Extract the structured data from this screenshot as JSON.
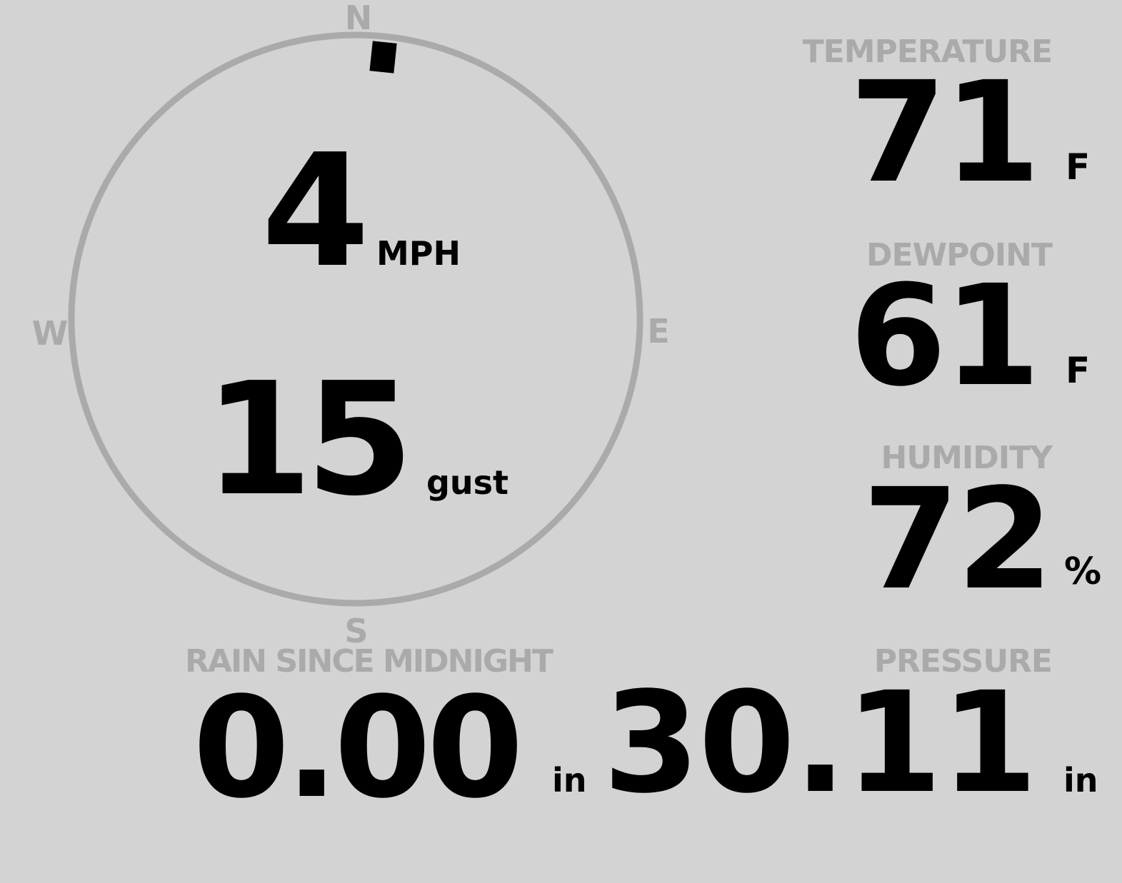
{
  "colors": {
    "background": "#d3d3d3",
    "muted": "#aaaaaa",
    "value": "#000000"
  },
  "wind": {
    "compass": {
      "north": "N",
      "east": "E",
      "south": "S",
      "west": "W"
    },
    "direction_deg": 6,
    "speed": "4",
    "speed_unit": "MPH",
    "gust": "15",
    "gust_unit": "gust"
  },
  "temperature": {
    "label": "TEMPERATURE",
    "value": "71",
    "unit": "F"
  },
  "dewpoint": {
    "label": "DEWPOINT",
    "value": "61",
    "unit": "F"
  },
  "humidity": {
    "label": "HUMIDITY",
    "value": "72",
    "unit": "%"
  },
  "rain": {
    "label": "RAIN SINCE MIDNIGHT",
    "value": "0.00",
    "unit": "in"
  },
  "pressure": {
    "label": "PRESSURE",
    "value": "30.11",
    "unit": "in"
  }
}
